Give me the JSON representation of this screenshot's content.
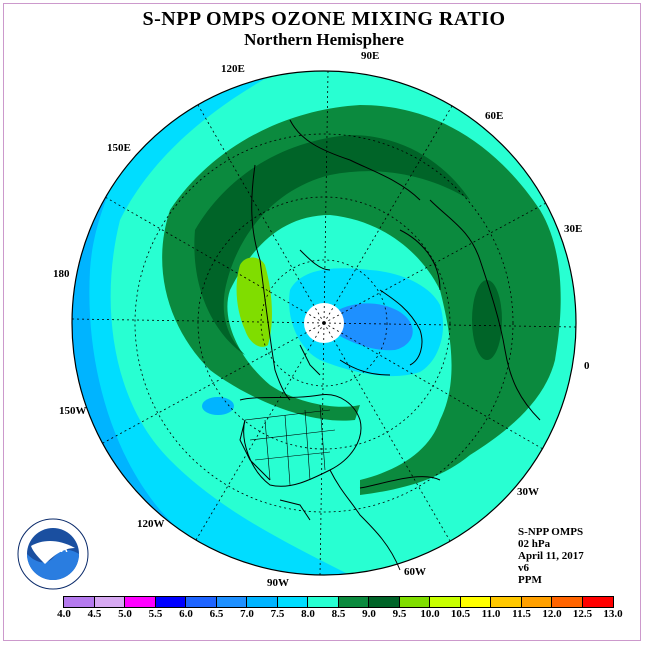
{
  "title": "S-NPP OMPS OZONE MIXING RATIO",
  "subtitle": "Northern Hemisphere",
  "longitude_labels": [
    "90E",
    "60E",
    "30E",
    "0",
    "30W",
    "60W",
    "90W",
    "120W",
    "150W",
    "180",
    "150E",
    "120E"
  ],
  "info": {
    "instrument": "S-NPP OMPS",
    "level": "02 hPa",
    "date": "April 11, 2017",
    "version": "v6",
    "units": "PPM"
  },
  "colorbar": {
    "ticks": [
      "4.0",
      "4.5",
      "5.0",
      "5.5",
      "6.0",
      "6.5",
      "7.0",
      "7.5",
      "8.0",
      "8.5",
      "9.0",
      "9.5",
      "10.0",
      "10.5",
      "11.0",
      "11.5",
      "12.0",
      "12.5",
      "13.0"
    ],
    "colors": [
      "#b57aee",
      "#d7a9f2",
      "#ff00ff",
      "#0000ff",
      "#1e64ff",
      "#1e90ff",
      "#00b4ff",
      "#00ddff",
      "#28ffd2",
      "#0b8a3e",
      "#006428",
      "#80dd00",
      "#c8ff00",
      "#ffff00",
      "#ffc800",
      "#ffa000",
      "#ff6400",
      "#ff0000",
      "#8b5a3c"
    ]
  },
  "logo": "NOAA",
  "colors": {
    "frame": "#cc99cc",
    "ocean_cyan": "#28ffd2",
    "light_blue": "#00ddff",
    "dark_green": "#006428"
  }
}
